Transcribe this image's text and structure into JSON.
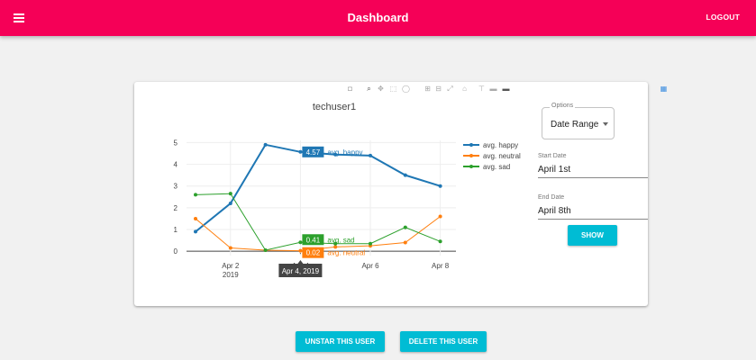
{
  "header": {
    "title": "Dashboard",
    "logout_label": "LOGOUT"
  },
  "chart_data": {
    "type": "line",
    "title": "techuser1",
    "x": [
      "2019-04-01",
      "2019-04-02",
      "2019-04-03",
      "2019-04-04",
      "2019-04-05",
      "2019-04-06",
      "2019-04-07",
      "2019-04-08"
    ],
    "x_ticks": [
      {
        "date": "2019-04-02",
        "label": "Apr 2",
        "label2": "2019"
      },
      {
        "date": "2019-04-04",
        "label": "Apr 4",
        "label2": ""
      },
      {
        "date": "2019-04-06",
        "label": "Apr 6",
        "label2": ""
      },
      {
        "date": "2019-04-08",
        "label": "Apr 8",
        "label2": ""
      }
    ],
    "y_ticks": [
      0,
      1,
      2,
      3,
      4,
      5
    ],
    "ylim": [
      -0.2,
      5.1
    ],
    "grid": true,
    "legend_position": "right",
    "series": [
      {
        "name": "avg. happy",
        "color": "#1f77b4",
        "values": [
          0.9,
          2.2,
          4.9,
          4.57,
          4.45,
          4.4,
          3.5,
          3.0
        ]
      },
      {
        "name": "avg. neutral",
        "color": "#ff7f0e",
        "values": [
          1.5,
          0.15,
          0.05,
          0.02,
          0.2,
          0.25,
          0.4,
          1.6
        ]
      },
      {
        "name": "avg. sad",
        "color": "#2ca02c",
        "values": [
          2.6,
          2.65,
          0.05,
          0.41,
          0.35,
          0.35,
          1.1,
          0.45
        ]
      }
    ],
    "hover": {
      "x_label": "Apr 4, 2019",
      "labels": [
        {
          "series": "avg. happy",
          "value": "4.57"
        },
        {
          "series": "avg. sad",
          "value": "0.41"
        },
        {
          "series": "avg. neutral",
          "value": "0.02"
        }
      ]
    }
  },
  "modebar_icons": [
    "camera-icon",
    "zoom-icon",
    "pan-icon",
    "box-select-icon",
    "lasso-icon",
    "zoom-in-icon",
    "zoom-out-icon",
    "autoscale-icon",
    "home-icon",
    "spike-lines-icon",
    "compare-hover-icon",
    "closest-hover-icon",
    "plotly-logo-icon"
  ],
  "controls": {
    "options_label": "Options",
    "options_value": "Date Range",
    "start_label": "Start Date",
    "start_value": "April 1st",
    "end_label": "End Date",
    "end_value": "April 8th",
    "show_label": "SHOW"
  },
  "actions": {
    "unstar_label": "UNSTAR THIS USER",
    "delete_label": "DELETE THIS USER"
  }
}
